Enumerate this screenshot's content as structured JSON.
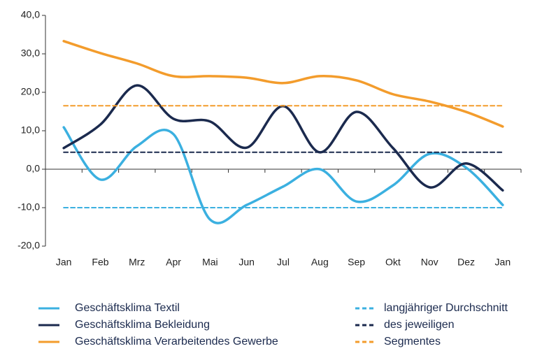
{
  "chart_data": {
    "type": "line",
    "categories": [
      "Jan",
      "Feb",
      "Mrz",
      "Apr",
      "Mai",
      "Jun",
      "Jul",
      "Aug",
      "Sep",
      "Okt",
      "Nov",
      "Dez",
      "Jan"
    ],
    "ylim": [
      -20,
      40
    ],
    "yticks": [
      {
        "value": -20,
        "label": "-20,0"
      },
      {
        "value": -10,
        "label": "-10,0"
      },
      {
        "value": 0,
        "label": "0,0"
      },
      {
        "value": 10,
        "label": "10,0"
      },
      {
        "value": 20,
        "label": "20,0"
      },
      {
        "value": 30,
        "label": "30,0"
      },
      {
        "value": 40,
        "label": "40,0"
      }
    ],
    "series": [
      {
        "name": "Geschäftsklima Textil",
        "color": "#3bb0e0",
        "style": "solid",
        "values": [
          10.9,
          -2.7,
          6.0,
          9.1,
          -13.1,
          -9.3,
          -4.5,
          0.0,
          -8.4,
          -4.2,
          4.0,
          0.4,
          -9.3
        ]
      },
      {
        "name": "Geschäftsklima Bekleidung",
        "color": "#1b2a4e",
        "style": "solid",
        "values": [
          5.5,
          11.6,
          21.8,
          13.1,
          12.4,
          5.6,
          16.4,
          4.4,
          14.9,
          5.5,
          -4.7,
          1.5,
          -5.5
        ]
      },
      {
        "name": "Geschäftsklima Verarbeitendes Gewerbe",
        "color": "#f39c2c",
        "style": "solid",
        "values": [
          33.3,
          30.2,
          27.5,
          24.2,
          24.2,
          23.8,
          22.4,
          24.2,
          23.1,
          19.5,
          17.6,
          14.9,
          11.1
        ]
      },
      {
        "name": "langjähriger Durchschnitt",
        "color": "#3bb0e0",
        "style": "dashed",
        "values": [
          -10,
          -10,
          -10,
          -10,
          -10,
          -10,
          -10,
          -10,
          -10,
          -10,
          -10,
          -10,
          -10
        ]
      },
      {
        "name": "des jeweiligen",
        "color": "#1b2a4e",
        "style": "dashed",
        "values": [
          4.4,
          4.4,
          4.4,
          4.4,
          4.4,
          4.4,
          4.4,
          4.4,
          4.4,
          4.4,
          4.4,
          4.4,
          4.4
        ]
      },
      {
        "name": "Segmentes",
        "color": "#f39c2c",
        "style": "dashed",
        "values": [
          16.5,
          16.5,
          16.5,
          16.5,
          16.5,
          16.5,
          16.5,
          16.5,
          16.5,
          16.5,
          16.5,
          16.5,
          16.5
        ]
      }
    ]
  }
}
